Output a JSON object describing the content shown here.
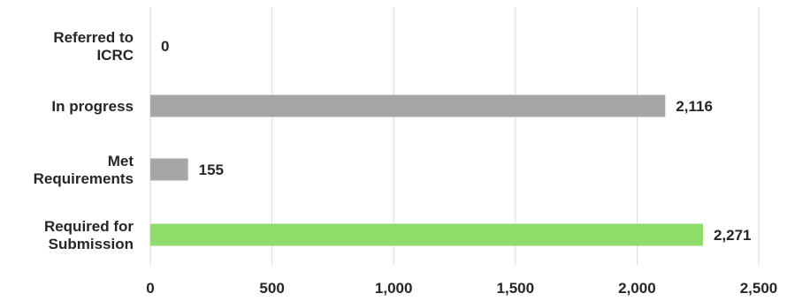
{
  "chart_data": {
    "type": "bar",
    "orientation": "horizontal",
    "categories": [
      [
        "Referred to",
        "ICRC"
      ],
      [
        "In progress"
      ],
      [
        "Met",
        "Requirements"
      ],
      [
        "Required for",
        "Submission"
      ]
    ],
    "values": [
      0,
      2116,
      155,
      2271
    ],
    "data_labels": [
      "0",
      "2,116",
      "155",
      "2,271"
    ],
    "bar_colors": [
      "#a6a6a6",
      "#a6a6a6",
      "#a6a6a6",
      "#8fdc6a"
    ],
    "xlim": [
      0,
      2500
    ],
    "x_ticks": [
      0,
      500,
      1000,
      1500,
      2000,
      2500
    ],
    "x_tick_labels": [
      "0",
      "500",
      "1,000",
      "1,500",
      "2,000",
      "2,500"
    ],
    "grid": true,
    "title": "",
    "xlabel": "",
    "ylabel": ""
  }
}
